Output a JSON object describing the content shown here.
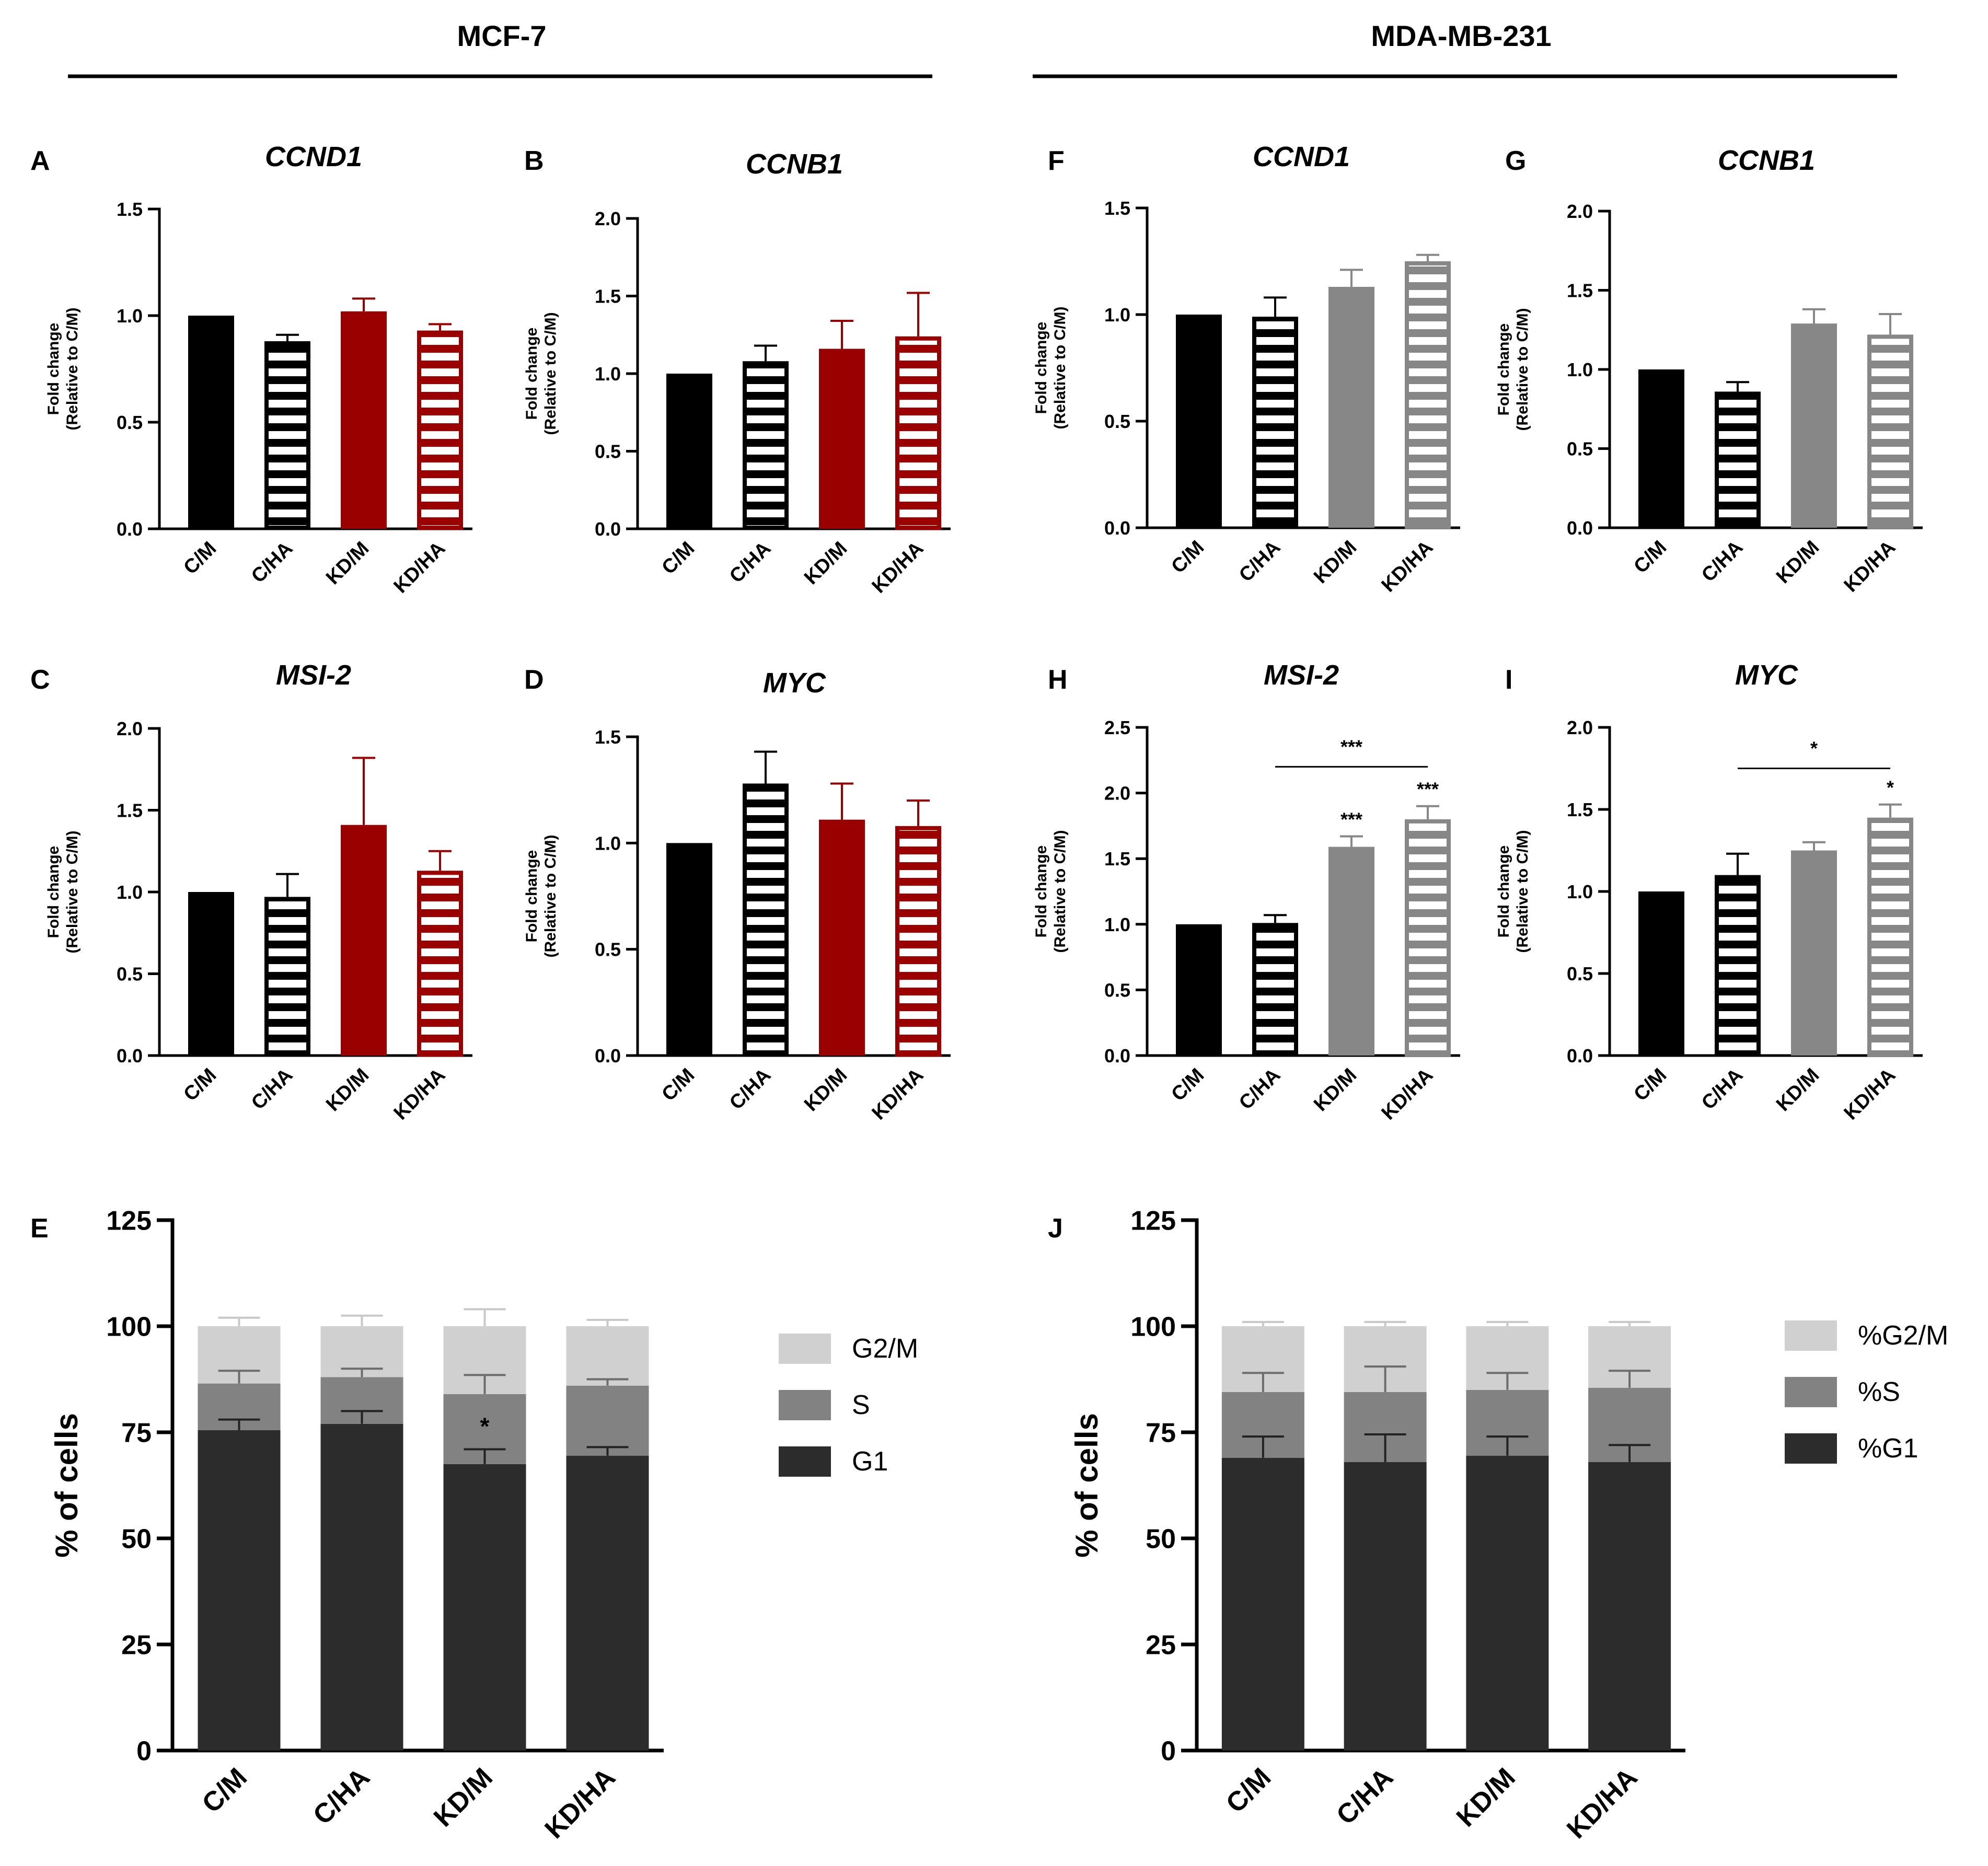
{
  "header": {
    "left_title": "MCF-7",
    "right_title": "MDA-MB-231"
  },
  "colors": {
    "black": "#000000",
    "dark_red": "#9b0000",
    "gray": "#878787",
    "g1": "#2c2c2c",
    "s": "#828282",
    "g2m": "#d0d0d0"
  },
  "common": {
    "ylabel_line1": "Fold change",
    "ylabel_line2": "(Relative to C/M)"
  },
  "chart_data": [
    {
      "panel": "A",
      "title": "CCND1",
      "type": "bar",
      "categories": [
        "C/M",
        "C/HA",
        "KD/M",
        "KD/HA"
      ],
      "values": [
        1.0,
        0.88,
        1.02,
        0.93
      ],
      "errors": [
        0,
        0.03,
        0.06,
        0.03
      ],
      "ylim": [
        0,
        1.5
      ],
      "ticks": [
        "0.0",
        "0.5",
        "1.0",
        "1.5"
      ],
      "ylabel": "Fold change (Relative to C/M)",
      "colors": [
        "black",
        "black",
        "dark_red",
        "dark_red"
      ],
      "striped": [
        false,
        true,
        false,
        true
      ],
      "significance": [
        "",
        "",
        "",
        ""
      ]
    },
    {
      "panel": "B",
      "title": "CCNB1",
      "type": "bar",
      "categories": [
        "C/M",
        "C/HA",
        "KD/M",
        "KD/HA"
      ],
      "values": [
        1.0,
        1.08,
        1.16,
        1.24
      ],
      "errors": [
        0,
        0.1,
        0.18,
        0.28
      ],
      "ylim": [
        0,
        2.0
      ],
      "ticks": [
        "0.0",
        "0.5",
        "1.0",
        "1.5",
        "2.0"
      ],
      "ylabel": "Fold change (Relative to C/M)",
      "colors": [
        "black",
        "black",
        "dark_red",
        "dark_red"
      ],
      "striped": [
        false,
        true,
        false,
        true
      ],
      "significance": [
        "",
        "",
        "",
        ""
      ]
    },
    {
      "panel": "C",
      "title": "MSI-2",
      "type": "bar",
      "categories": [
        "C/M",
        "C/HA",
        "KD/M",
        "KD/HA"
      ],
      "values": [
        1.0,
        0.97,
        1.41,
        1.13
      ],
      "errors": [
        0,
        0.14,
        0.41,
        0.12
      ],
      "ylim": [
        0,
        2.0
      ],
      "ticks": [
        "0.0",
        "0.5",
        "1.0",
        "1.5",
        "2.0"
      ],
      "ylabel": "Fold change (Relative to C/M)",
      "colors": [
        "black",
        "black",
        "dark_red",
        "dark_red"
      ],
      "striped": [
        false,
        true,
        false,
        true
      ],
      "significance": [
        "",
        "",
        "",
        ""
      ]
    },
    {
      "panel": "D",
      "title": "MYC",
      "type": "bar",
      "categories": [
        "C/M",
        "C/HA",
        "KD/M",
        "KD/HA"
      ],
      "values": [
        1.0,
        1.28,
        1.11,
        1.08
      ],
      "errors": [
        0,
        0.15,
        0.17,
        0.12
      ],
      "ylim": [
        0,
        1.5
      ],
      "ticks": [
        "0.0",
        "0.5",
        "1.0",
        "1.5"
      ],
      "ylabel": "Fold change (Relative to C/M)",
      "colors": [
        "black",
        "black",
        "dark_red",
        "dark_red"
      ],
      "striped": [
        false,
        true,
        false,
        true
      ],
      "significance": [
        "",
        "",
        "",
        ""
      ]
    },
    {
      "panel": "F",
      "title": "CCND1",
      "type": "bar",
      "categories": [
        "C/M",
        "C/HA",
        "KD/M",
        "KD/HA"
      ],
      "values": [
        1.0,
        0.99,
        1.13,
        1.25
      ],
      "errors": [
        0,
        0.09,
        0.08,
        0.03
      ],
      "ylim": [
        0,
        1.5
      ],
      "ticks": [
        "0.0",
        "0.5",
        "1.0",
        "1.5"
      ],
      "ylabel": "Fold change (Relative to C/M)",
      "colors": [
        "black",
        "black",
        "gray",
        "gray"
      ],
      "striped": [
        false,
        true,
        false,
        true
      ],
      "significance": [
        "",
        "",
        "",
        ""
      ]
    },
    {
      "panel": "G",
      "title": "CCNB1",
      "type": "bar",
      "categories": [
        "C/M",
        "C/HA",
        "KD/M",
        "KD/HA"
      ],
      "values": [
        1.0,
        0.86,
        1.29,
        1.22
      ],
      "errors": [
        0,
        0.06,
        0.09,
        0.13
      ],
      "ylim": [
        0,
        2.0
      ],
      "ticks": [
        "0.0",
        "0.5",
        "1.0",
        "1.5",
        "2.0"
      ],
      "ylabel": "Fold change (Relative to C/M)",
      "colors": [
        "black",
        "black",
        "gray",
        "gray"
      ],
      "striped": [
        false,
        true,
        false,
        true
      ],
      "significance": [
        "",
        "",
        "",
        ""
      ]
    },
    {
      "panel": "H",
      "title": "MSI-2",
      "type": "bar",
      "categories": [
        "C/M",
        "C/HA",
        "KD/M",
        "KD/HA"
      ],
      "values": [
        1.0,
        1.01,
        1.59,
        1.8
      ],
      "errors": [
        0,
        0.06,
        0.08,
        0.1
      ],
      "ylim": [
        0,
        2.5
      ],
      "ticks": [
        "0.0",
        "0.5",
        "1.0",
        "1.5",
        "2.0",
        "2.5"
      ],
      "ylabel": "Fold change (Relative to C/M)",
      "colors": [
        "black",
        "black",
        "gray",
        "gray"
      ],
      "striped": [
        false,
        true,
        false,
        true
      ],
      "significance": [
        "",
        "",
        "***",
        "***"
      ],
      "bracket": {
        "from": 1,
        "to": 3,
        "label": "***",
        "y": 2.2
      }
    },
    {
      "panel": "I",
      "title": "MYC",
      "type": "bar",
      "categories": [
        "C/M",
        "C/HA",
        "KD/M",
        "KD/HA"
      ],
      "values": [
        1.0,
        1.1,
        1.25,
        1.45
      ],
      "errors": [
        0,
        0.13,
        0.05,
        0.08
      ],
      "ylim": [
        0,
        2.0
      ],
      "ticks": [
        "0.0",
        "0.5",
        "1.0",
        "1.5",
        "2.0"
      ],
      "ylabel": "Fold change (Relative to C/M)",
      "colors": [
        "black",
        "black",
        "gray",
        "gray"
      ],
      "striped": [
        false,
        true,
        false,
        true
      ],
      "significance": [
        "",
        "",
        "",
        "*"
      ],
      "bracket": {
        "from": 1,
        "to": 3,
        "label": "*",
        "y": 1.75
      }
    },
    {
      "panel": "E",
      "title": "",
      "type": "stacked-bar",
      "categories": [
        "C/M",
        "C/HA",
        "KD/M",
        "KD/HA"
      ],
      "ylabel": "% of cells",
      "ylim": [
        0,
        125
      ],
      "ticks": [
        "0",
        "25",
        "50",
        "75",
        "100",
        "125"
      ],
      "series": [
        {
          "name": "G1",
          "values": [
            75.5,
            77,
            67.5,
            69.5
          ],
          "errors": [
            2.5,
            3,
            3.5,
            2
          ]
        },
        {
          "name": "S",
          "values": [
            11,
            11,
            16.5,
            16.5
          ],
          "errors": [
            3,
            2,
            4.5,
            1.5
          ]
        },
        {
          "name": "G2/M",
          "values": [
            13.5,
            12,
            16,
            14
          ],
          "errors": [
            2,
            2.5,
            4,
            1.5
          ]
        }
      ],
      "legend": [
        "G2/M",
        "S",
        "G1"
      ],
      "annotations": [
        {
          "category": "KD/M",
          "text": "*"
        }
      ]
    },
    {
      "panel": "J",
      "title": "",
      "type": "stacked-bar",
      "categories": [
        "C/M",
        "C/HA",
        "KD/M",
        "KD/HA"
      ],
      "ylabel": "% of cells",
      "ylim": [
        0,
        125
      ],
      "ticks": [
        "0",
        "25",
        "50",
        "75",
        "100",
        "125"
      ],
      "series": [
        {
          "name": "%G1",
          "values": [
            69,
            68,
            69.5,
            68
          ],
          "errors": [
            5,
            6.5,
            4.5,
            4
          ]
        },
        {
          "name": "%S",
          "values": [
            15.5,
            16.5,
            15.5,
            17.5
          ],
          "errors": [
            4.5,
            6,
            4,
            4
          ]
        },
        {
          "name": "%G2/M",
          "values": [
            15.5,
            15.5,
            15,
            14.5
          ],
          "errors": [
            1,
            1,
            1,
            1
          ]
        }
      ],
      "legend": [
        "%G2/M",
        "%S",
        "%G1"
      ],
      "annotations": []
    }
  ]
}
